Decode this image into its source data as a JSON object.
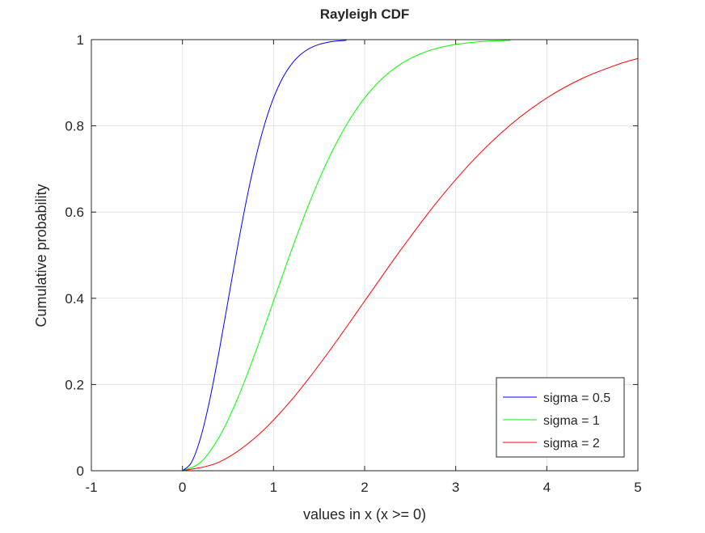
{
  "chart_data": {
    "type": "line",
    "title": "Rayleigh CDF",
    "xlabel": "values in x (x >= 0)",
    "ylabel": "Cumulative probability",
    "xlim": [
      -1,
      5
    ],
    "ylim": [
      0,
      1
    ],
    "xticks": [
      -1,
      0,
      1,
      2,
      3,
      4,
      5
    ],
    "yticks": [
      0,
      0.2,
      0.4,
      0.6,
      0.8,
      1
    ],
    "xtick_labels": [
      "-1",
      "0",
      "1",
      "2",
      "3",
      "4",
      "5"
    ],
    "ytick_labels": [
      "0",
      "0.2",
      "0.4",
      "0.6",
      "0.8",
      "1"
    ],
    "grid": true,
    "legend_position": "bottom-right",
    "series": [
      {
        "name": "sigma = 0.5",
        "color": "#0000ff",
        "x": [
          -1,
          0,
          0.1,
          0.2,
          0.3,
          0.4,
          0.5,
          0.6,
          0.7,
          0.8,
          0.9,
          1.0,
          1.1,
          1.2,
          1.3,
          1.4,
          1.5,
          1.6,
          1.7,
          1.8
        ],
        "y": [
          0,
          0,
          0.0198,
          0.0769,
          0.1647,
          0.2739,
          0.3935,
          0.5132,
          0.6247,
          0.722,
          0.8021,
          0.8647,
          0.9111,
          0.9439,
          0.966,
          0.9802,
          0.9889,
          0.994,
          0.9969,
          0.9985
        ]
      },
      {
        "name": "sigma = 1",
        "color": "#00ff00",
        "x": [
          -1,
          0,
          0.2,
          0.4,
          0.6,
          0.8,
          1.0,
          1.2,
          1.4,
          1.6,
          1.8,
          2.0,
          2.2,
          2.4,
          2.6,
          2.8,
          3.0,
          3.2,
          3.4,
          3.6
        ],
        "y": [
          0,
          0,
          0.0198,
          0.0769,
          0.1647,
          0.2739,
          0.3935,
          0.5132,
          0.6247,
          0.722,
          0.8021,
          0.8647,
          0.9111,
          0.9439,
          0.966,
          0.9802,
          0.9889,
          0.994,
          0.9969,
          0.9985
        ]
      },
      {
        "name": "sigma = 2",
        "color": "#ff0000",
        "x": [
          -1,
          0,
          0.4,
          0.8,
          1.2,
          1.6,
          2.0,
          2.4,
          2.8,
          3.2,
          3.6,
          4.0,
          4.4,
          4.8,
          5.0
        ],
        "y": [
          0,
          0,
          0.0198,
          0.0769,
          0.1647,
          0.2739,
          0.3935,
          0.5132,
          0.6247,
          0.722,
          0.8021,
          0.8647,
          0.9111,
          0.9439,
          0.9561
        ]
      }
    ]
  }
}
